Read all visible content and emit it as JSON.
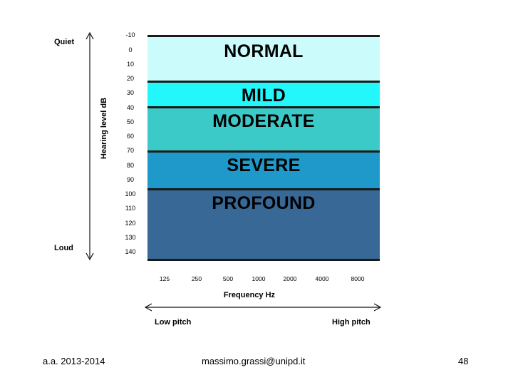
{
  "y_axis": {
    "title": "Hearing level dB",
    "top_label": "Quiet",
    "bottom_label": "Loud",
    "ticks": [
      "-10",
      "0",
      "10",
      "20",
      "30",
      "40",
      "50",
      "60",
      "70",
      "80",
      "90",
      "100",
      "110",
      "120",
      "130",
      "140"
    ]
  },
  "x_axis": {
    "title": "Frequency Hz",
    "ticks": [
      "125",
      "250",
      "500",
      "1000",
      "2000",
      "4000",
      "8000"
    ],
    "left_label": "Low pitch",
    "right_label": "High pitch"
  },
  "bands": [
    {
      "label": "NORMAL",
      "from_db": -10,
      "to_db": 25,
      "color": "#ccfbfc"
    },
    {
      "label": "MILD",
      "from_db": 25,
      "to_db": 40,
      "color": "#22f7fb"
    },
    {
      "label": "MODERATE",
      "from_db": 40,
      "to_db": 70,
      "color": "#3ccac8"
    },
    {
      "label": "SEVERE",
      "from_db": 70,
      "to_db": 95,
      "color": "#1e99c9"
    },
    {
      "label": "PROFOUND",
      "from_db": 95,
      "to_db": 145,
      "color": "#376896"
    }
  ],
  "footer": {
    "left": "a.a. 2013-2014",
    "center": "massimo.grassi@unipd.it",
    "right": "48"
  }
}
